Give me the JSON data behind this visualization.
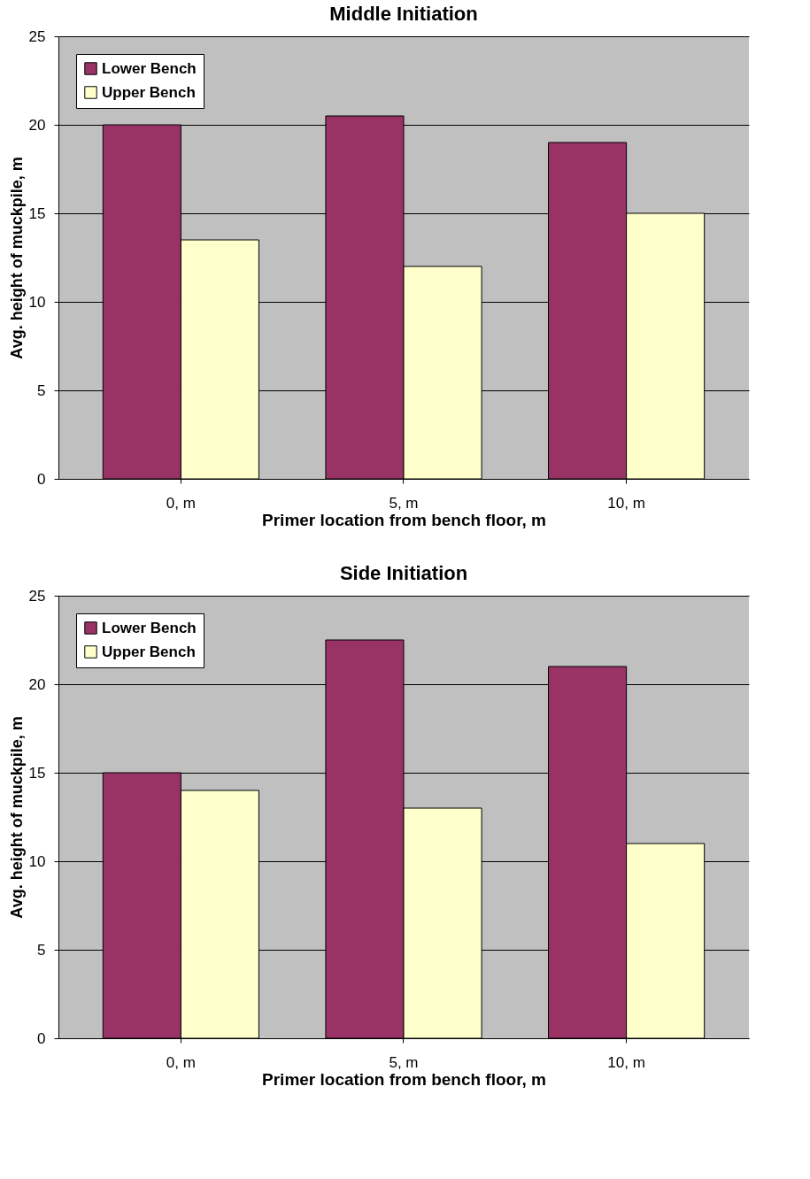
{
  "chart_data": [
    {
      "type": "bar",
      "title": "Middle Initiation",
      "xlabel": "Primer location from bench floor, m",
      "ylabel": "Avg. height of muckpile, m",
      "categories": [
        "0, m",
        "5, m",
        "10, m"
      ],
      "series": [
        {
          "name": "Lower Bench",
          "color": "#993366",
          "values": [
            20,
            20.5,
            19
          ]
        },
        {
          "name": "Upper Bench",
          "color": "#ffffcc",
          "values": [
            13.5,
            12,
            15
          ]
        }
      ],
      "ylim": [
        0,
        25
      ],
      "yticks": [
        0,
        5,
        10,
        15,
        20,
        25
      ],
      "grid": "y",
      "legend": "top left"
    },
    {
      "type": "bar",
      "title": "Side Initiation",
      "xlabel": "Primer location from bench floor, m",
      "ylabel": "Avg. height of muckpile, m",
      "categories": [
        "0, m",
        "5, m",
        "10, m"
      ],
      "series": [
        {
          "name": "Lower Bench",
          "color": "#993366",
          "values": [
            15,
            22.5,
            21
          ]
        },
        {
          "name": "Upper Bench",
          "color": "#ffffcc",
          "values": [
            14,
            13,
            11
          ]
        }
      ],
      "ylim": [
        0,
        25
      ],
      "yticks": [
        0,
        5,
        10,
        15,
        20,
        25
      ],
      "grid": "y",
      "legend": "top left"
    }
  ]
}
